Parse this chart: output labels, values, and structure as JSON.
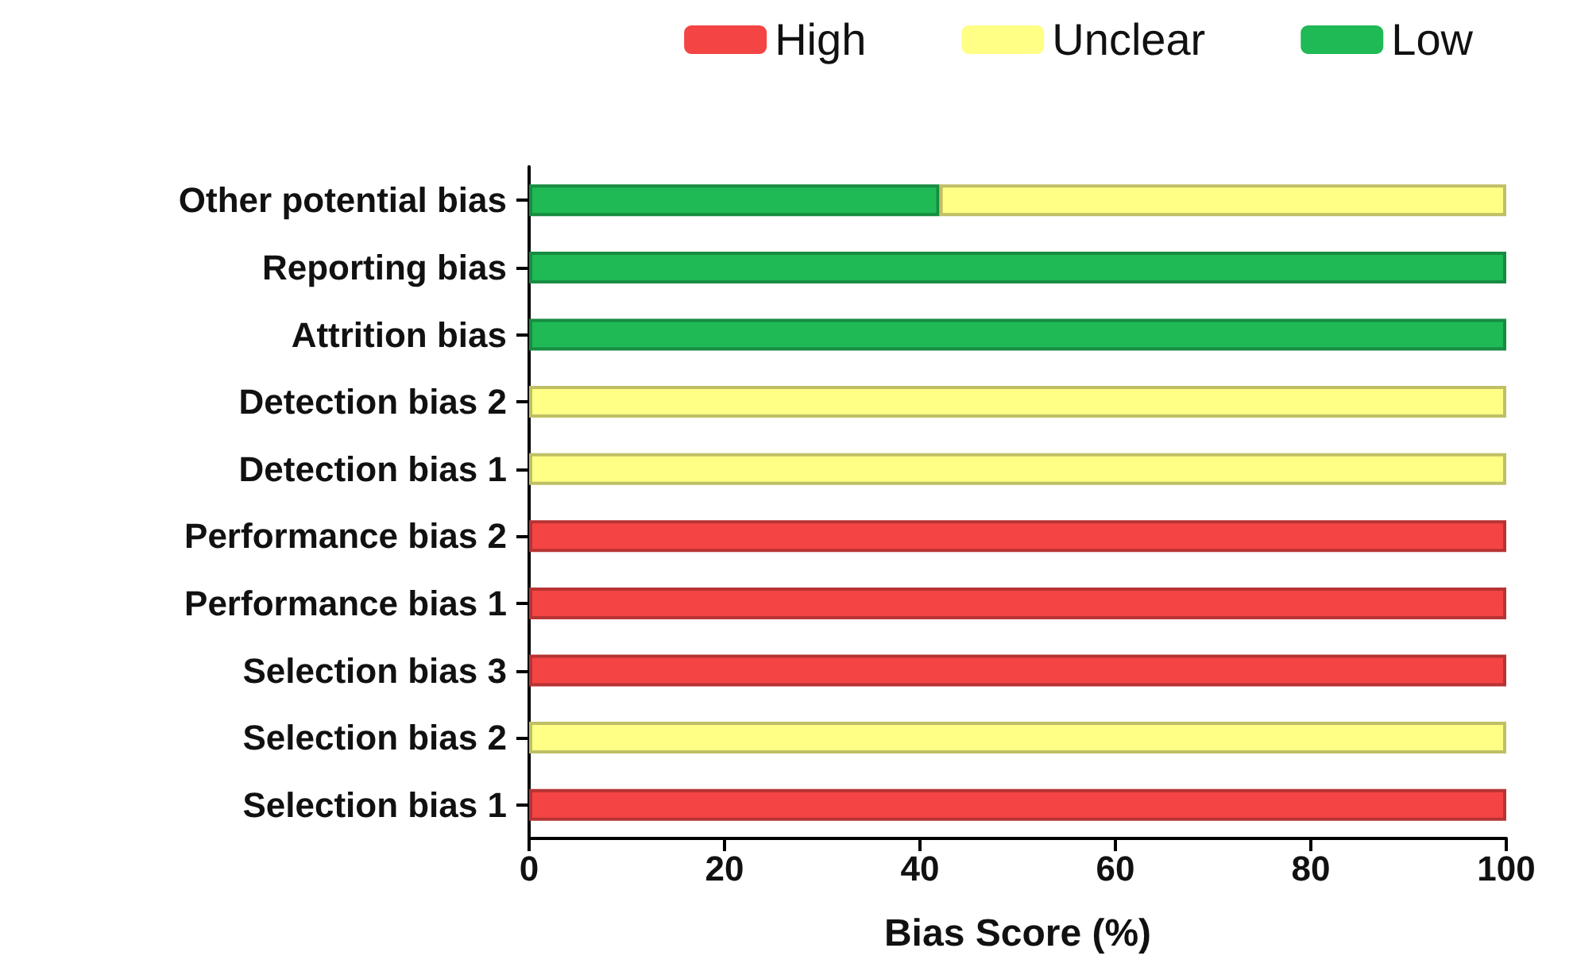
{
  "chart_data": {
    "type": "bar",
    "orientation": "horizontal",
    "stacked": true,
    "xlabel": "Bias Score (%)",
    "categories": [
      "Other potential bias",
      "Reporting bias",
      "Attrition bias",
      "Detection bias 2",
      "Detection bias 1",
      "Performance bias 2",
      "Performance bias 1",
      "Selection bias 3",
      "Selection bias 2",
      "Selection bias 1"
    ],
    "series": [
      {
        "name": "Low",
        "color": "#1fba55",
        "values": [
          42,
          100,
          100,
          0,
          0,
          0,
          0,
          0,
          0,
          0
        ]
      },
      {
        "name": "Unclear",
        "color": "#ffff85",
        "values": [
          58,
          0,
          0,
          100,
          100,
          0,
          0,
          0,
          100,
          0
        ]
      },
      {
        "name": "High",
        "color": "#f44444",
        "values": [
          0,
          0,
          0,
          0,
          0,
          100,
          100,
          100,
          0,
          100
        ]
      }
    ],
    "xlim": [
      0,
      100
    ],
    "xticks": [
      0,
      20,
      40,
      60,
      80,
      100
    ],
    "grid": false,
    "legend": "top right"
  }
}
